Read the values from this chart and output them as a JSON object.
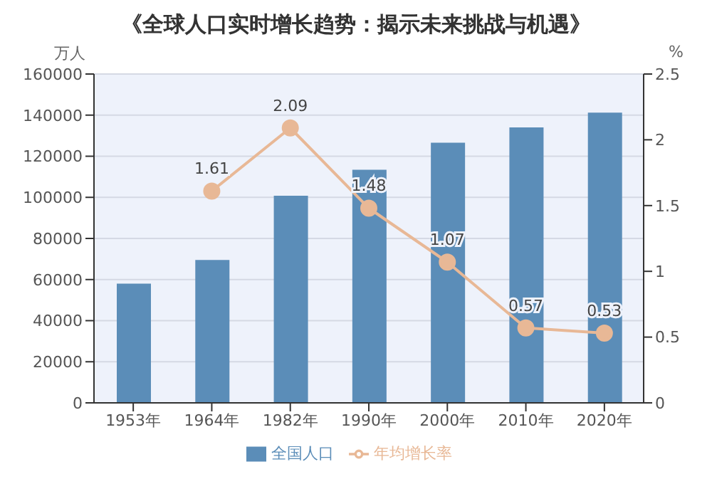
{
  "chart_data": {
    "type": "bar",
    "title": "《全球人口实时增长趋势：揭示未来挑战与机遇》",
    "categories": [
      "1953年",
      "1964年",
      "1982年",
      "1990年",
      "2000年",
      "2010年",
      "2020年"
    ],
    "series": [
      {
        "name": "全国人口",
        "color": "#5b8db8",
        "values": [
          58000,
          69500,
          100800,
          113400,
          126600,
          134000,
          141200
        ]
      },
      {
        "name": "年均增长率",
        "type": "line",
        "axis": "y2",
        "color": "#e8b896",
        "values": [
          null,
          1.61,
          2.09,
          1.48,
          1.07,
          0.57,
          0.53
        ],
        "value_labels": [
          null,
          "1.61",
          "2.09",
          "1.48",
          "1.07",
          "0.57",
          "0.53"
        ]
      }
    ],
    "ylabel": "万人",
    "y2label": "%",
    "ylim": [
      0,
      160000
    ],
    "yticks": [
      0,
      20000,
      40000,
      60000,
      80000,
      100000,
      120000,
      140000,
      160000
    ],
    "y2lim": [
      0,
      2.5
    ],
    "y2ticks": [
      0,
      0.5,
      1,
      1.5,
      2,
      2.5
    ],
    "grid": "y",
    "legend": "bottom",
    "marker": "circle"
  }
}
